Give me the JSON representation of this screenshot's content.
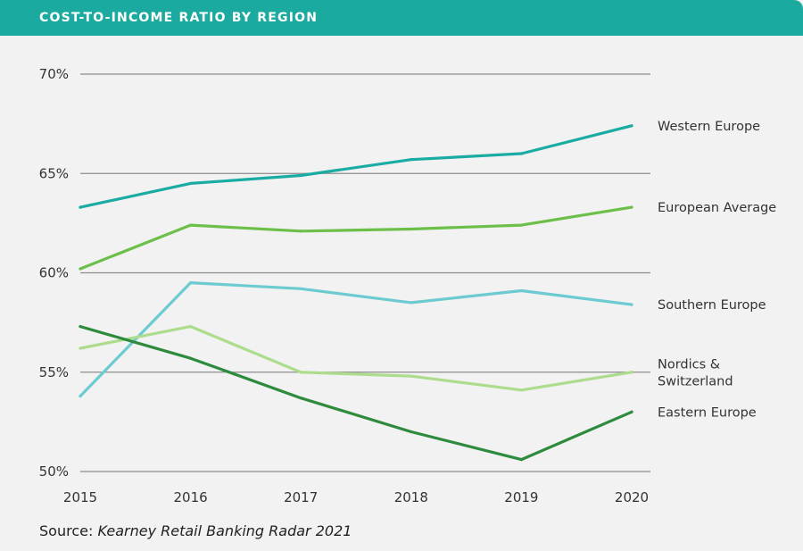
{
  "header": {
    "title": "COST-TO-INCOME RATIO BY REGION"
  },
  "source": {
    "prefix": "Source: ",
    "text": "Kearney Retail Banking Radar 2021"
  },
  "chart_data": {
    "type": "line",
    "title": "COST-TO-INCOME RATIO BY REGION",
    "x": [
      "2015",
      "2016",
      "2017",
      "2018",
      "2019",
      "2020"
    ],
    "xlabel": "",
    "ylabel": "",
    "ylim": [
      50,
      70
    ],
    "yticks": [
      50,
      55,
      60,
      65,
      70
    ],
    "ytick_labels": [
      "50%",
      "55%",
      "60%",
      "65%",
      "70%"
    ],
    "grid": "horizontal",
    "legend": "inline labels at right end of lines",
    "series": [
      {
        "name": "Western Europe",
        "label_lines": [
          "Western Europe"
        ],
        "color": "#1aaca2",
        "values": [
          63.3,
          64.5,
          64.9,
          65.7,
          66.0,
          67.4
        ]
      },
      {
        "name": "European Average",
        "label_lines": [
          "European Average"
        ],
        "color": "#6cc04a",
        "values": [
          60.2,
          62.4,
          62.1,
          62.2,
          62.4,
          63.3
        ]
      },
      {
        "name": "Southern Europe",
        "label_lines": [
          "Southern Europe"
        ],
        "color": "#6ccbd1",
        "values": [
          53.8,
          59.5,
          59.2,
          58.5,
          59.1,
          58.4
        ]
      },
      {
        "name": "Nordics & Switzerland",
        "label_lines": [
          "Nordics &",
          "Switzerland"
        ],
        "color": "#acdc8c",
        "values": [
          56.2,
          57.3,
          55.0,
          54.8,
          54.1,
          55.0
        ]
      },
      {
        "name": "Eastern Europe",
        "label_lines": [
          "Eastern Europe"
        ],
        "color": "#2e8b3e",
        "values": [
          57.3,
          55.7,
          53.7,
          52.0,
          50.6,
          53.0
        ]
      }
    ]
  }
}
